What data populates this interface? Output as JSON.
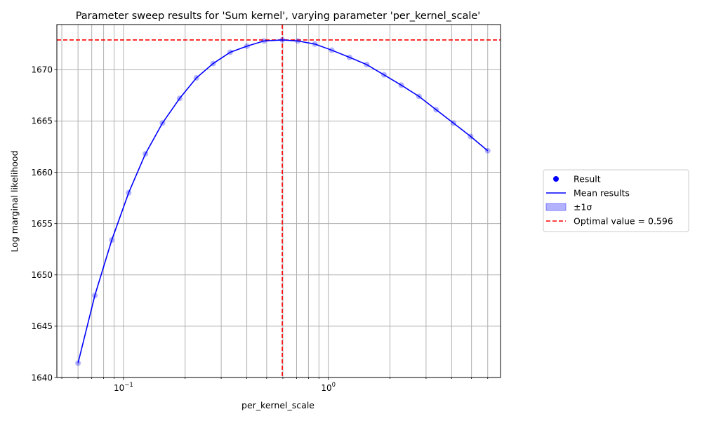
{
  "chart_data": {
    "type": "line",
    "title": "Parameter sweep results for 'Sum kernel', varying parameter 'per_kernel_scale'",
    "xlabel": "per_kernel_scale",
    "ylabel": "Log marginal likelihood",
    "xscale": "log",
    "xlim": [
      0.0473,
      6.93
    ],
    "ylim": [
      1640,
      1674.4
    ],
    "xticks_major": [
      {
        "value": 0.1,
        "label": "10",
        "exp": "−1"
      },
      {
        "value": 1,
        "label": "10",
        "exp": "0"
      }
    ],
    "yticks": [
      1640,
      1645,
      1650,
      1655,
      1660,
      1665,
      1670
    ],
    "grid": true,
    "x": [
      0.06,
      0.0725,
      0.0877,
      0.106,
      0.128,
      0.155,
      0.188,
      0.227,
      0.274,
      0.332,
      0.401,
      0.485,
      0.596,
      0.71,
      0.86,
      1.04,
      1.27,
      1.54,
      1.87,
      2.27,
      2.77,
      3.36,
      4.08,
      4.95,
      6.0
    ],
    "series": [
      {
        "name": "Result",
        "kind": "points",
        "color": "#0000ff",
        "alpha": 0.3,
        "values": [
          1641.4,
          1648.0,
          1653.4,
          1658.0,
          1661.8,
          1664.8,
          1667.2,
          1669.2,
          1670.6,
          1671.7,
          1672.3,
          1672.8,
          1672.9,
          1672.8,
          1672.5,
          1671.9,
          1671.2,
          1670.5,
          1669.5,
          1668.5,
          1667.4,
          1666.1,
          1664.8,
          1663.5,
          1662.1
        ]
      },
      {
        "name": "Mean results",
        "kind": "line",
        "color": "#0000ff",
        "values": [
          1641.4,
          1648.0,
          1653.4,
          1658.0,
          1661.8,
          1664.8,
          1667.2,
          1669.2,
          1670.6,
          1671.7,
          1672.3,
          1672.8,
          1672.9,
          1672.8,
          1672.5,
          1671.9,
          1671.2,
          1670.5,
          1669.5,
          1668.5,
          1667.4,
          1666.1,
          1664.8,
          1663.5,
          1662.1
        ]
      }
    ],
    "sigma_label": "±1σ",
    "sigma_color": "#0000ff",
    "optimal": {
      "x": 0.596,
      "y": 1672.9,
      "label": "Optimal value = 0.596",
      "color": "#ff0000"
    },
    "legend": {
      "placement": "right",
      "entries": [
        {
          "label": "Result",
          "kind": "marker",
          "color": "#0000ff"
        },
        {
          "label": "Mean results",
          "kind": "line",
          "color": "#0000ff"
        },
        {
          "label": "±1σ",
          "kind": "patch",
          "color": "#0000ff"
        },
        {
          "label": "Optimal value = 0.596",
          "kind": "dashed",
          "color": "#ff0000"
        }
      ]
    }
  }
}
